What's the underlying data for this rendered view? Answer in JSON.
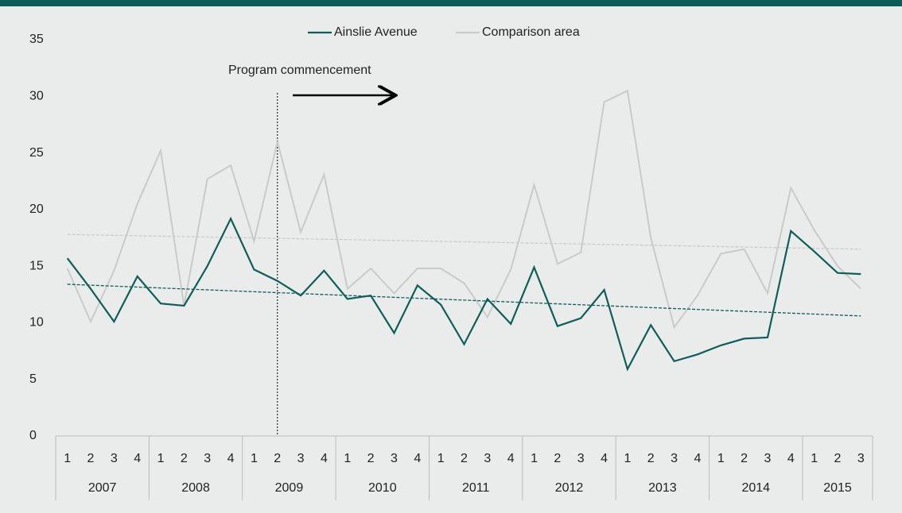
{
  "chart_data": {
    "type": "line",
    "categories": [
      "1",
      "2",
      "3",
      "4",
      "1",
      "2",
      "3",
      "4",
      "1",
      "2",
      "3",
      "4",
      "1",
      "2",
      "3",
      "4",
      "1",
      "2",
      "3",
      "4",
      "1",
      "2",
      "3",
      "4",
      "1",
      "2",
      "3",
      "4",
      "1",
      "2",
      "3",
      "4",
      "1",
      "2",
      "3"
    ],
    "years": [
      {
        "label": "2007",
        "quarters": 4
      },
      {
        "label": "2008",
        "quarters": 4
      },
      {
        "label": "2009",
        "quarters": 4
      },
      {
        "label": "2010",
        "quarters": 4
      },
      {
        "label": "2011",
        "quarters": 4
      },
      {
        "label": "2012",
        "quarters": 4
      },
      {
        "label": "2013",
        "quarters": 4
      },
      {
        "label": "2014",
        "quarters": 4
      },
      {
        "label": "2015",
        "quarters": 3
      }
    ],
    "series": [
      {
        "name": "Ainslie Avenue",
        "color": "#0e5e5a",
        "values": [
          15.7,
          13.0,
          10.1,
          14.1,
          11.7,
          11.5,
          15.0,
          19.2,
          14.7,
          13.7,
          12.4,
          14.6,
          12.1,
          12.4,
          9.1,
          13.3,
          11.6,
          8.1,
          12.1,
          9.9,
          14.9,
          9.7,
          10.4,
          12.9,
          5.9,
          9.8,
          6.6,
          7.2,
          8.0,
          8.6,
          8.7,
          18.1,
          16.3,
          14.4,
          14.3
        ],
        "trend": [
          13.4,
          10.6
        ]
      },
      {
        "name": "Comparison area",
        "color": "#c9cbca",
        "values": [
          14.8,
          10.1,
          14.6,
          20.5,
          25.2,
          11.5,
          22.7,
          23.9,
          17.2,
          26.0,
          18.0,
          23.1,
          13.0,
          14.8,
          12.6,
          14.8,
          14.8,
          13.5,
          10.5,
          14.7,
          22.2,
          15.2,
          16.2,
          29.5,
          30.5,
          17.5,
          9.6,
          12.4,
          16.1,
          16.5,
          12.6,
          21.9,
          18.2,
          15.0,
          13.0
        ],
        "trend": [
          17.8,
          16.5
        ]
      }
    ],
    "annotation": {
      "text": "Program commencement",
      "category_index": 9
    },
    "ylim": [
      0,
      35
    ],
    "yticks": [
      0,
      5,
      10,
      15,
      20,
      25,
      30,
      35
    ],
    "legend": "top"
  }
}
